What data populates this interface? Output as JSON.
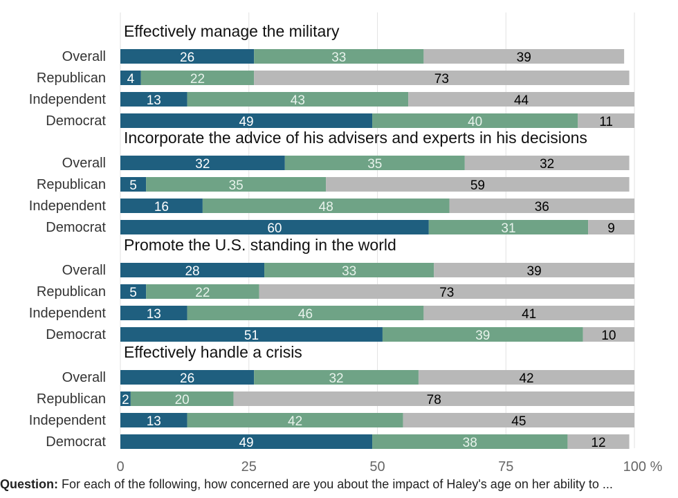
{
  "chart_data": {
    "type": "bar",
    "orientation": "horizontal",
    "stacked": true,
    "xlim": [
      0,
      100
    ],
    "xticks": [
      0,
      25,
      50,
      75,
      100
    ],
    "x_unit": "%",
    "grid": true,
    "colors": [
      "#1f5f7f",
      "#6fa386",
      "#b8b8b8"
    ],
    "groups": [
      {
        "title": "Effectively manage the military",
        "categories": [
          "Overall",
          "Republican",
          "Independent",
          "Democrat"
        ],
        "values": [
          [
            26,
            33,
            39
          ],
          [
            4,
            22,
            73
          ],
          [
            13,
            43,
            44
          ],
          [
            49,
            40,
            11
          ]
        ]
      },
      {
        "title": "Incorporate the advice of his advisers and experts in his decisions",
        "categories": [
          "Overall",
          "Republican",
          "Independent",
          "Democrat"
        ],
        "values": [
          [
            32,
            35,
            32
          ],
          [
            5,
            35,
            59
          ],
          [
            16,
            48,
            36
          ],
          [
            60,
            31,
            9
          ]
        ]
      },
      {
        "title": "Promote the U.S. standing in the world",
        "categories": [
          "Overall",
          "Republican",
          "Independent",
          "Democrat"
        ],
        "values": [
          [
            28,
            33,
            39
          ],
          [
            5,
            22,
            73
          ],
          [
            13,
            46,
            41
          ],
          [
            51,
            39,
            10
          ]
        ]
      },
      {
        "title": "Effectively handle a crisis",
        "categories": [
          "Overall",
          "Republican",
          "Independent",
          "Democrat"
        ],
        "values": [
          [
            26,
            32,
            42
          ],
          [
            2,
            20,
            78
          ],
          [
            13,
            42,
            45
          ],
          [
            49,
            38,
            12
          ]
        ]
      }
    ]
  },
  "note": {
    "label": "Question:",
    "text": "For each of the following, how concerned are you about the impact of Haley's age on her ability to ..."
  }
}
